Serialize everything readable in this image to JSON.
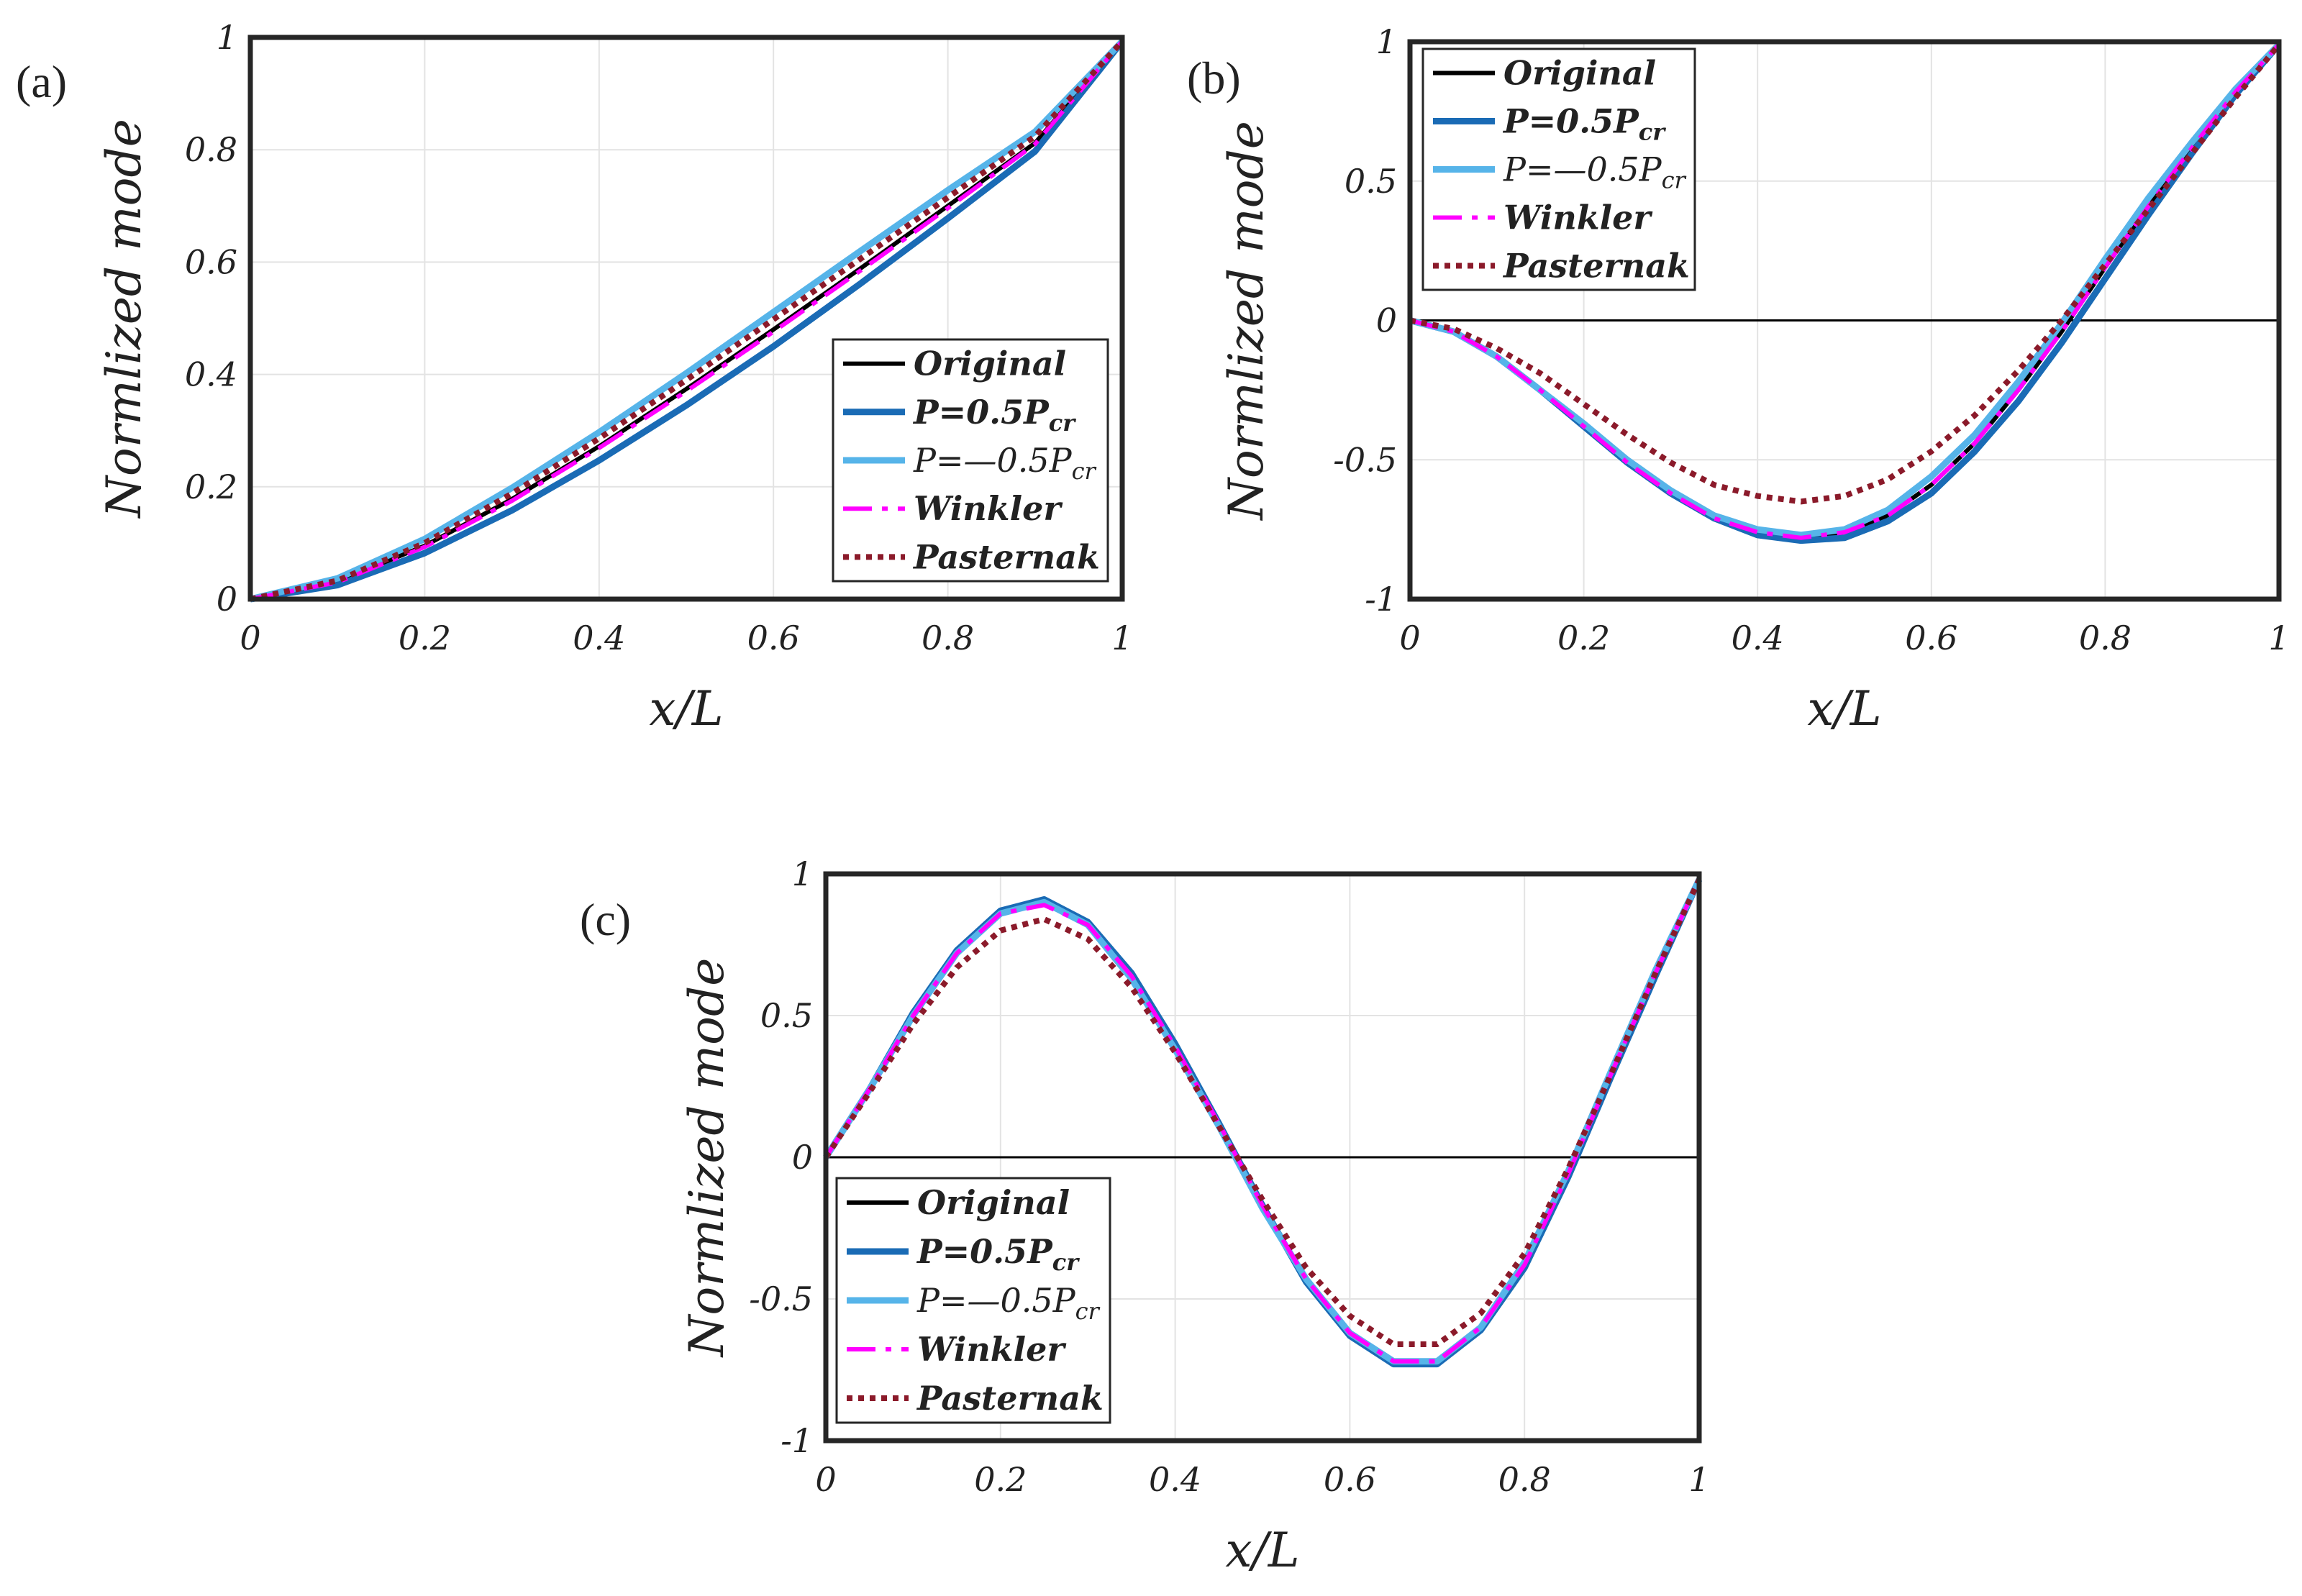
{
  "chart_data": [
    {
      "type": "line",
      "panel_label": "(a)",
      "xlabel": "x/L",
      "ylabel": "Normlized mode",
      "xlim": [
        0,
        1
      ],
      "ylim": [
        0,
        1
      ],
      "xticks": [
        0,
        0.2,
        0.4,
        0.6,
        0.8,
        1
      ],
      "xtick_labels": [
        "0",
        "0.2",
        "0.4",
        "0.6",
        "0.8",
        "1"
      ],
      "yticks": [
        0,
        0.2,
        0.4,
        0.6,
        0.8,
        1
      ],
      "ytick_labels": [
        "0",
        "0.2",
        "0.4",
        "0.6",
        "0.8",
        "1"
      ],
      "grid": true,
      "zero_line": false,
      "legend_position": "bottom-right",
      "x": [
        0,
        0.1,
        0.2,
        0.3,
        0.4,
        0.5,
        0.6,
        0.7,
        0.8,
        0.9,
        1
      ],
      "series": [
        {
          "name": "Original",
          "legend": {
            "main": "Original",
            "sub": ""
          },
          "color": "#000000",
          "dash": "solid",
          "values": [
            0,
            0.031,
            0.095,
            0.178,
            0.272,
            0.374,
            0.48,
            0.589,
            0.7,
            0.812,
            0.993
          ]
        },
        {
          "name": "P=0.5Pcr",
          "legend": {
            "main": "P=0.5P",
            "sub": "cr"
          },
          "color": "#1a6bb5",
          "dash": "solid",
          "values": [
            0,
            0.025,
            0.082,
            0.158,
            0.247,
            0.345,
            0.45,
            0.562,
            0.678,
            0.797,
            0.993
          ]
        },
        {
          "name": "P=—0.5Pcr",
          "legend": {
            "main": "P=—0.5P",
            "sub": "cr"
          },
          "color": "#56b4e9",
          "dash": "solid",
          "values": [
            0,
            0.037,
            0.107,
            0.198,
            0.297,
            0.402,
            0.511,
            0.62,
            0.728,
            0.832,
            0.993
          ]
        },
        {
          "name": "Winkler",
          "legend": {
            "main": "Winkler",
            "sub": ""
          },
          "color": "#ff00ff",
          "dash": "dashdot",
          "values": [
            0,
            0.03,
            0.093,
            0.175,
            0.269,
            0.37,
            0.476,
            0.585,
            0.696,
            0.81,
            0.993
          ]
        },
        {
          "name": "Pasternak",
          "legend": {
            "main": "Pasternak",
            "sub": ""
          },
          "color": "#8b1a2a",
          "dash": "dotted",
          "values": [
            0,
            0.033,
            0.1,
            0.188,
            0.286,
            0.39,
            0.498,
            0.606,
            0.715,
            0.824,
            0.993
          ]
        }
      ]
    },
    {
      "type": "line",
      "panel_label": "(b)",
      "xlabel": "x/L",
      "ylabel": "Normlized mode",
      "xlim": [
        0,
        1
      ],
      "ylim": [
        -1,
        1
      ],
      "xticks": [
        0,
        0.2,
        0.4,
        0.6,
        0.8,
        1
      ],
      "xtick_labels": [
        "0",
        "0.2",
        "0.4",
        "0.6",
        "0.8",
        "1"
      ],
      "yticks": [
        -1,
        -0.5,
        0,
        0.5,
        1
      ],
      "ytick_labels": [
        "-1",
        "-0.5",
        "0",
        "0.5",
        "1"
      ],
      "grid": true,
      "zero_line": true,
      "legend_position": "top-left",
      "x": [
        0,
        0.05,
        0.1,
        0.15,
        0.2,
        0.25,
        0.3,
        0.35,
        0.4,
        0.45,
        0.5,
        0.55,
        0.6,
        0.65,
        0.7,
        0.75,
        0.8,
        0.85,
        0.9,
        0.95,
        1
      ],
      "series": [
        {
          "name": "Original",
          "legend": {
            "main": "Original",
            "sub": ""
          },
          "color": "#000000",
          "dash": "solid",
          "values": [
            0,
            -0.04,
            -0.13,
            -0.25,
            -0.38,
            -0.51,
            -0.62,
            -0.71,
            -0.76,
            -0.78,
            -0.76,
            -0.7,
            -0.59,
            -0.44,
            -0.25,
            -0.04,
            0.19,
            0.41,
            0.62,
            0.82,
            0.99
          ]
        },
        {
          "name": "P=0.5Pcr",
          "legend": {
            "main": "P=0.5P",
            "sub": "cr"
          },
          "color": "#1a6bb5",
          "dash": "solid",
          "values": [
            0,
            -0.04,
            -0.13,
            -0.25,
            -0.38,
            -0.51,
            -0.62,
            -0.71,
            -0.77,
            -0.79,
            -0.78,
            -0.72,
            -0.62,
            -0.47,
            -0.29,
            -0.08,
            0.15,
            0.38,
            0.6,
            0.81,
            0.99
          ]
        },
        {
          "name": "P=—0.5Pcr",
          "legend": {
            "main": "P=—0.5P",
            "sub": "cr"
          },
          "color": "#56b4e9",
          "dash": "solid",
          "values": [
            0,
            -0.04,
            -0.13,
            -0.25,
            -0.37,
            -0.5,
            -0.61,
            -0.7,
            -0.75,
            -0.77,
            -0.75,
            -0.68,
            -0.56,
            -0.41,
            -0.22,
            -0.01,
            0.22,
            0.44,
            0.64,
            0.83,
            0.99
          ]
        },
        {
          "name": "Winkler",
          "legend": {
            "main": "Winkler",
            "sub": ""
          },
          "color": "#ff00ff",
          "dash": "dashdot",
          "values": [
            0,
            -0.04,
            -0.13,
            -0.25,
            -0.38,
            -0.51,
            -0.62,
            -0.71,
            -0.76,
            -0.78,
            -0.76,
            -0.7,
            -0.59,
            -0.44,
            -0.25,
            -0.04,
            0.19,
            0.41,
            0.62,
            0.82,
            0.99
          ]
        },
        {
          "name": "Pasternak",
          "legend": {
            "main": "Pasternak",
            "sub": ""
          },
          "color": "#8b1a2a",
          "dash": "dotted",
          "values": [
            0,
            -0.03,
            -0.1,
            -0.19,
            -0.3,
            -0.41,
            -0.51,
            -0.59,
            -0.63,
            -0.65,
            -0.63,
            -0.57,
            -0.47,
            -0.34,
            -0.18,
            0.0,
            0.2,
            0.4,
            0.6,
            0.8,
            0.99
          ]
        }
      ]
    },
    {
      "type": "line",
      "panel_label": "(c)",
      "xlabel": "x/L",
      "ylabel": "Normlized mode",
      "xlim": [
        0,
        1
      ],
      "ylim": [
        -1,
        1
      ],
      "xticks": [
        0,
        0.2,
        0.4,
        0.6,
        0.8,
        1
      ],
      "xtick_labels": [
        "0",
        "0.2",
        "0.4",
        "0.6",
        "0.8",
        "1"
      ],
      "yticks": [
        -1,
        -0.5,
        0,
        0.5,
        1
      ],
      "ytick_labels": [
        "-1",
        "-0.5",
        "0",
        "0.5",
        "1"
      ],
      "grid": true,
      "zero_line": true,
      "legend_position": "bottom-left",
      "x": [
        0,
        0.05,
        0.1,
        0.15,
        0.2,
        0.25,
        0.3,
        0.35,
        0.4,
        0.45,
        0.5,
        0.55,
        0.6,
        0.65,
        0.7,
        0.75,
        0.8,
        0.85,
        0.9,
        0.95,
        1
      ],
      "series": [
        {
          "name": "Original",
          "legend": {
            "main": "Original",
            "sub": ""
          },
          "color": "#000000",
          "dash": "solid",
          "values": [
            0,
            0.24,
            0.5,
            0.72,
            0.86,
            0.9,
            0.82,
            0.64,
            0.39,
            0.12,
            -0.17,
            -0.43,
            -0.62,
            -0.72,
            -0.72,
            -0.6,
            -0.38,
            -0.06,
            0.3,
            0.65,
            0.98
          ]
        },
        {
          "name": "P=0.5Pcr",
          "legend": {
            "main": "P=0.5P",
            "sub": "cr"
          },
          "color": "#1a6bb5",
          "dash": "solid",
          "values": [
            0,
            0.24,
            0.51,
            0.73,
            0.87,
            0.91,
            0.83,
            0.65,
            0.4,
            0.12,
            -0.17,
            -0.44,
            -0.63,
            -0.73,
            -0.73,
            -0.61,
            -0.39,
            -0.07,
            0.29,
            0.64,
            0.98
          ]
        },
        {
          "name": "P=—0.5Pcr",
          "legend": {
            "main": "P=—0.5P",
            "sub": "cr"
          },
          "color": "#56b4e9",
          "dash": "solid",
          "values": [
            0,
            0.24,
            0.5,
            0.72,
            0.86,
            0.9,
            0.82,
            0.63,
            0.38,
            0.11,
            -0.18,
            -0.43,
            -0.62,
            -0.72,
            -0.72,
            -0.6,
            -0.37,
            -0.05,
            0.31,
            0.66,
            0.98
          ]
        },
        {
          "name": "Winkler",
          "legend": {
            "main": "Winkler",
            "sub": ""
          },
          "color": "#ff00ff",
          "dash": "dashdot",
          "values": [
            0,
            0.24,
            0.5,
            0.72,
            0.86,
            0.89,
            0.82,
            0.64,
            0.39,
            0.12,
            -0.17,
            -0.43,
            -0.62,
            -0.72,
            -0.72,
            -0.6,
            -0.38,
            -0.06,
            0.3,
            0.65,
            0.98
          ]
        },
        {
          "name": "Pasternak",
          "legend": {
            "main": "Pasternak",
            "sub": ""
          },
          "color": "#8b1a2a",
          "dash": "dotted",
          "values": [
            0,
            0.23,
            0.47,
            0.67,
            0.8,
            0.84,
            0.77,
            0.6,
            0.37,
            0.11,
            -0.15,
            -0.39,
            -0.56,
            -0.66,
            -0.66,
            -0.55,
            -0.34,
            -0.04,
            0.3,
            0.65,
            0.98
          ]
        }
      ]
    }
  ]
}
